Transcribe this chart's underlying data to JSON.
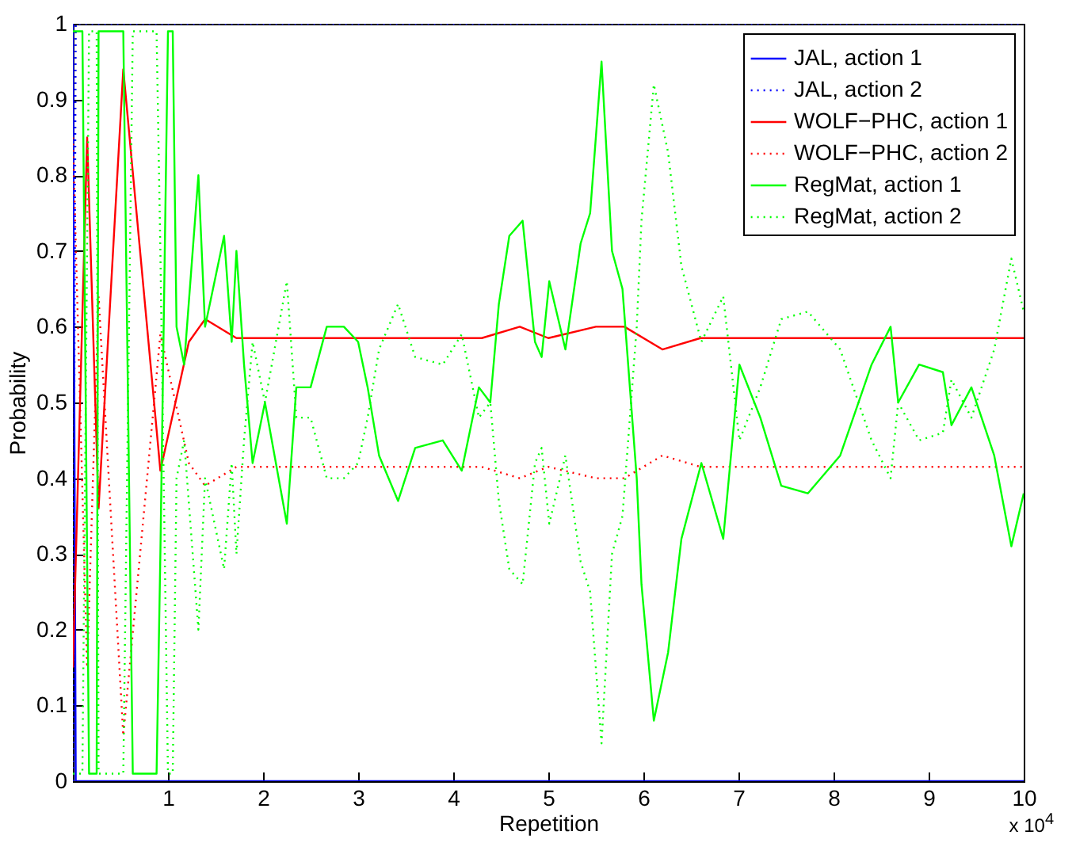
{
  "chart_data": {
    "type": "line",
    "xlabel": "Repetition",
    "ylabel": "Probability",
    "annotations": [
      "x 10$^{4}$"
    ],
    "xlim": [
      0,
      10
    ],
    "ylim": [
      0,
      1
    ],
    "xticks": [
      1,
      2,
      3,
      4,
      5,
      6,
      7,
      8,
      9,
      10
    ],
    "yticks": [
      0,
      0.1,
      0.2,
      0.3,
      0.4,
      0.5,
      0.6,
      0.7,
      0.8,
      0.9,
      1
    ],
    "grid": false,
    "legend": "top right",
    "series": [
      {
        "name": "JAL, action 1",
        "color": "#0000ff",
        "line_style": "solid",
        "x": [
          0,
          0.03,
          10
        ],
        "values": [
          1,
          0,
          0
        ]
      },
      {
        "name": "JAL, action 2",
        "color": "#0000ff",
        "line_style": "dotted",
        "x": [
          0,
          0.03,
          10
        ],
        "values": [
          0,
          1,
          1
        ]
      },
      {
        "name": "WOLF−PHC, action 1",
        "color": "#ff0000",
        "line_style": "solid",
        "x": [
          0,
          0.15,
          0.27,
          0.53,
          0.92,
          1.22,
          1.39,
          1.72,
          4.3,
          4.7,
          5,
          5.5,
          5.8,
          6.2,
          6.6,
          10
        ],
        "values": [
          0.15,
          0.85,
          0.36,
          0.94,
          0.41,
          0.58,
          0.61,
          0.585,
          0.585,
          0.6,
          0.585,
          0.6,
          0.6,
          0.57,
          0.585,
          0.585
        ]
      },
      {
        "name": "WOLF−PHC, action 2",
        "color": "#ff0000",
        "line_style": "dotted",
        "x": [
          0,
          0.15,
          0.27,
          0.53,
          0.92,
          1.22,
          1.39,
          1.72,
          4.3,
          4.7,
          5,
          5.5,
          5.8,
          6.2,
          6.6,
          10
        ],
        "values": [
          0.85,
          0.15,
          0.64,
          0.06,
          0.59,
          0.42,
          0.39,
          0.415,
          0.415,
          0.4,
          0.415,
          0.4,
          0.4,
          0.43,
          0.415,
          0.415
        ]
      },
      {
        "name": "RegMat, action 1",
        "color": "#00ff00",
        "line_style": "solid",
        "x": [
          0,
          0.1,
          0.17,
          0.25,
          0.27,
          0.53,
          0.63,
          0.88,
          0.92,
          1,
          1.05,
          1.09,
          1.17,
          1.32,
          1.39,
          1.59,
          1.67,
          1.72,
          1.8,
          1.89,
          2.02,
          2.25,
          2.35,
          2.5,
          2.67,
          2.85,
          3,
          3.1,
          3.22,
          3.42,
          3.6,
          3.89,
          4.09,
          4.27,
          4.39,
          4.48,
          4.59,
          4.73,
          4.86,
          4.93,
          5.01,
          5.18,
          5.34,
          5.44,
          5.56,
          5.67,
          5.78,
          5.84,
          5.93,
          5.98,
          6.11,
          6.26,
          6.4,
          6.61,
          6.84,
          7.01,
          7.23,
          7.45,
          7.73,
          8.07,
          8.4,
          8.6,
          8.68,
          8.9,
          9.15,
          9.24,
          9.45,
          9.69,
          9.87,
          10
        ],
        "values": [
          0.99,
          0.99,
          0.01,
          0.01,
          0.99,
          0.99,
          0.01,
          0.01,
          0.3,
          0.99,
          0.99,
          0.6,
          0.55,
          0.8,
          0.6,
          0.72,
          0.58,
          0.7,
          0.55,
          0.42,
          0.5,
          0.34,
          0.52,
          0.52,
          0.6,
          0.6,
          0.58,
          0.52,
          0.43,
          0.37,
          0.44,
          0.45,
          0.41,
          0.52,
          0.5,
          0.63,
          0.72,
          0.74,
          0.58,
          0.56,
          0.66,
          0.57,
          0.71,
          0.75,
          0.95,
          0.7,
          0.65,
          0.55,
          0.4,
          0.26,
          0.08,
          0.17,
          0.32,
          0.42,
          0.32,
          0.55,
          0.48,
          0.39,
          0.38,
          0.43,
          0.55,
          0.6,
          0.5,
          0.55,
          0.54,
          0.47,
          0.52,
          0.43,
          0.31,
          0.38
        ]
      },
      {
        "name": "RegMat, action 2",
        "color": "#00ff00",
        "line_style": "dotted",
        "x": [
          0,
          0.1,
          0.17,
          0.25,
          0.27,
          0.53,
          0.63,
          0.88,
          0.92,
          1,
          1.05,
          1.09,
          1.17,
          1.32,
          1.39,
          1.59,
          1.67,
          1.72,
          1.8,
          1.89,
          2.02,
          2.25,
          2.35,
          2.5,
          2.67,
          2.85,
          3,
          3.1,
          3.22,
          3.42,
          3.6,
          3.89,
          4.09,
          4.27,
          4.39,
          4.48,
          4.59,
          4.73,
          4.86,
          4.93,
          5.01,
          5.18,
          5.34,
          5.44,
          5.56,
          5.67,
          5.78,
          5.84,
          5.93,
          5.98,
          6.11,
          6.26,
          6.4,
          6.61,
          6.84,
          7.01,
          7.23,
          7.45,
          7.73,
          8.07,
          8.4,
          8.6,
          8.68,
          8.9,
          9.15,
          9.24,
          9.45,
          9.69,
          9.87,
          10
        ],
        "values": [
          0.01,
          0.01,
          0.99,
          0.99,
          0.01,
          0.01,
          0.99,
          0.99,
          0.7,
          0.01,
          0.01,
          0.4,
          0.45,
          0.2,
          0.4,
          0.28,
          0.42,
          0.3,
          0.45,
          0.58,
          0.5,
          0.66,
          0.48,
          0.48,
          0.4,
          0.4,
          0.42,
          0.48,
          0.57,
          0.63,
          0.56,
          0.55,
          0.59,
          0.48,
          0.5,
          0.37,
          0.28,
          0.26,
          0.42,
          0.44,
          0.34,
          0.43,
          0.29,
          0.25,
          0.05,
          0.3,
          0.35,
          0.45,
          0.6,
          0.74,
          0.92,
          0.83,
          0.68,
          0.58,
          0.64,
          0.45,
          0.52,
          0.61,
          0.62,
          0.57,
          0.45,
          0.4,
          0.5,
          0.45,
          0.46,
          0.53,
          0.48,
          0.57,
          0.69,
          0.62
        ]
      }
    ]
  }
}
